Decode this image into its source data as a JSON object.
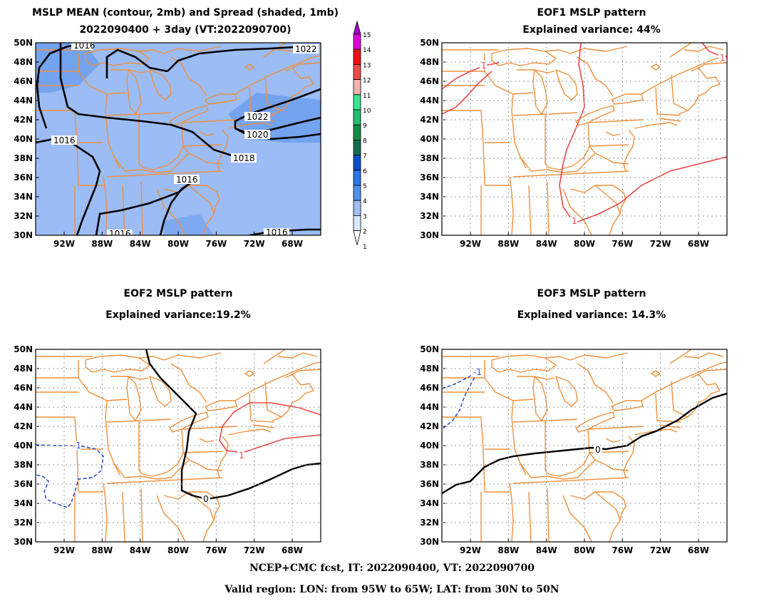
{
  "panels": {
    "mean": {
      "title1": "MSLP MEAN (contour, 2mb) and Spread (shaded, 1mb)",
      "title2": "2022090400 + 3day (VT:2022090700)",
      "contour_labels": [
        "1016",
        "1022",
        "1022",
        "1020",
        "1016",
        "1018",
        "1016",
        "1016",
        "1016"
      ]
    },
    "eof1": {
      "title1": "EOF1 MSLP pattern",
      "title2": "Explained variance: 44%",
      "contour_labels": [
        "1",
        "1",
        "1"
      ]
    },
    "eof2": {
      "title1": "EOF2 MSLP pattern",
      "title2": "Explained variance:19.2%",
      "contour_labels": [
        "-1",
        "1",
        "0"
      ]
    },
    "eof3": {
      "title1": "EOF3 MSLP pattern",
      "title2": "Explained variance: 14.3%",
      "contour_labels": [
        "-1",
        "0"
      ]
    }
  },
  "axes": {
    "lat_ticks": [
      "50N",
      "48N",
      "46N",
      "44N",
      "42N",
      "40N",
      "38N",
      "36N",
      "34N",
      "32N",
      "30N"
    ],
    "lon_ticks": [
      "92W",
      "88W",
      "84W",
      "80W",
      "76W",
      "72W",
      "68W"
    ]
  },
  "colorbar": {
    "labels": [
      "15",
      "14",
      "13",
      "12",
      "11",
      "10",
      "9",
      "8",
      "7",
      "6",
      "5",
      "4",
      "3",
      "2",
      "1"
    ],
    "colors": [
      "#a000c8",
      "#e000e0",
      "#f01010",
      "#f04848",
      "#f8b0b0",
      "#30e890",
      "#20c070",
      "#109040",
      "#107050",
      "#0050d0",
      "#2878f0",
      "#5090f0",
      "#a0c0f8",
      "#d8e8ff"
    ]
  },
  "footer": {
    "line1": "NCEP+CMC fcst, IT: 2022090400, VT: 2022090700",
    "line2": "Valid region: LON: from 95W to 65W; LAT: from 30N to 50N"
  },
  "colors": {
    "borders": "#f0903c",
    "mean_contour": "#000000",
    "positive": "#e84848",
    "negative": "#3050d8",
    "zero": "#000000",
    "spread_base": "#9bbcf5",
    "spread_high": "#6a9cee",
    "grid": "#999999"
  }
}
